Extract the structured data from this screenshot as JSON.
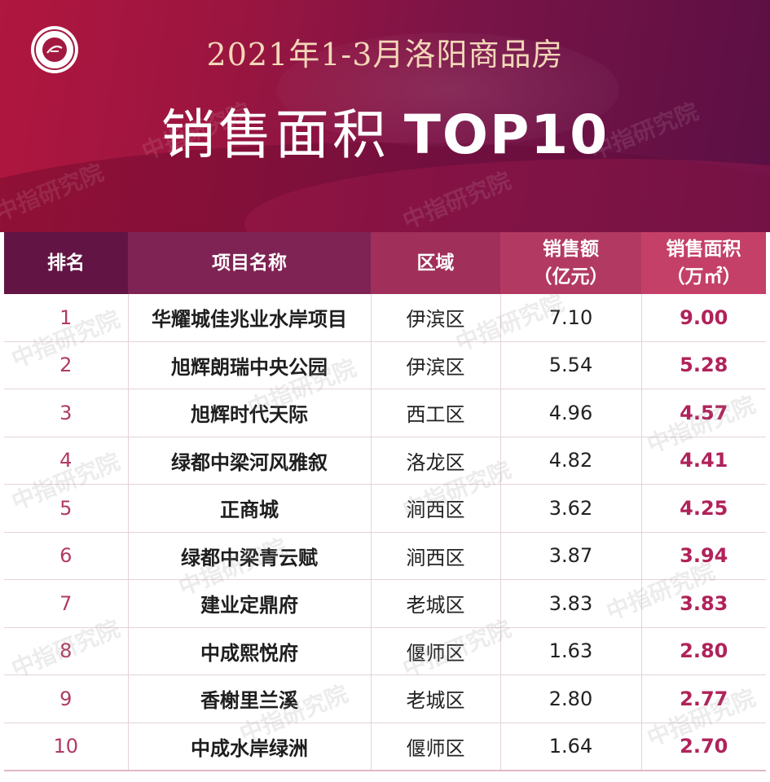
{
  "header": {
    "title_line1": "2021年1-3月洛阳商品房",
    "title_line2_cn": "销售面积",
    "title_line2_top": "TOP10",
    "logo_icon": "china-index-academy-logo-icon"
  },
  "table": {
    "columns": [
      "排名",
      "项目名称",
      "区域",
      "销售额\n（亿元）",
      "销售面积\n（万㎡）"
    ],
    "rows": [
      {
        "rank": "1",
        "name": "华耀城佳兆业水岸项目",
        "district": "伊滨区",
        "sales": "7.10",
        "area": "9.00"
      },
      {
        "rank": "2",
        "name": "旭辉朗瑞中央公园",
        "district": "伊滨区",
        "sales": "5.54",
        "area": "5.28"
      },
      {
        "rank": "3",
        "name": "旭辉时代天际",
        "district": "西工区",
        "sales": "4.96",
        "area": "4.57"
      },
      {
        "rank": "4",
        "name": "绿都中梁河风雅叙",
        "district": "洛龙区",
        "sales": "4.82",
        "area": "4.41"
      },
      {
        "rank": "5",
        "name": "正商城",
        "district": "涧西区",
        "sales": "3.62",
        "area": "4.25"
      },
      {
        "rank": "6",
        "name": "绿都中梁青云赋",
        "district": "涧西区",
        "sales": "3.87",
        "area": "3.94"
      },
      {
        "rank": "7",
        "name": "建业定鼎府",
        "district": "老城区",
        "sales": "3.83",
        "area": "3.83"
      },
      {
        "rank": "8",
        "name": "中成熙悦府",
        "district": "偃师区",
        "sales": "1.63",
        "area": "2.80"
      },
      {
        "rank": "9",
        "name": "香榭里兰溪",
        "district": "老城区",
        "sales": "2.80",
        "area": "2.77"
      },
      {
        "rank": "10",
        "name": "中成水岸绿洲",
        "district": "偃师区",
        "sales": "1.64",
        "area": "2.70"
      }
    ]
  },
  "watermark": "中指研究院",
  "colors": {
    "banner_start": "#b0163f",
    "banner_end": "#5a0f44",
    "title_line1": "#f3d7b8",
    "header_rank": "#621545",
    "area_value": "#b0235a",
    "rank_value": "#b03a66"
  }
}
